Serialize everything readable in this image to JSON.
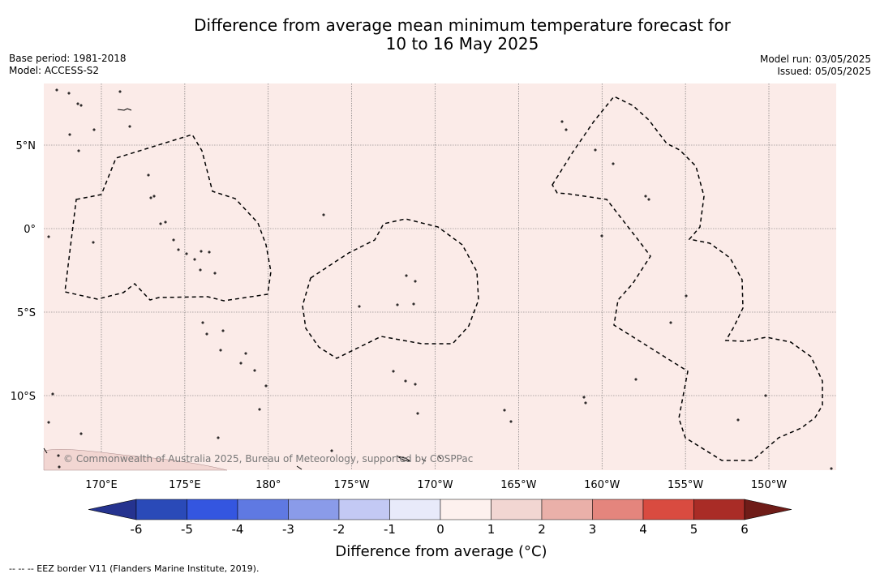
{
  "header": {
    "title_line1": "Difference from average mean minimum temperature forecast for",
    "title_line2": "10 to 16 May 2025",
    "base_period": "Base period: 1981-2018",
    "model": "Model: ACCESS-S2",
    "model_run": "Model run: 03/05/2025",
    "issued": "Issued: 05/05/2025"
  },
  "map": {
    "lat_labels": [
      "5°N",
      "0°",
      "5°S",
      "10°S"
    ],
    "lon_labels": [
      "170°E",
      "175°E",
      "180°",
      "175°W",
      "170°W",
      "165°W",
      "160°W",
      "155°W",
      "150°W"
    ],
    "lat_ticks": [
      5,
      0,
      -5,
      -10
    ],
    "lon_ticks": [
      170,
      175,
      180,
      185,
      190,
      195,
      200,
      205,
      210
    ],
    "background_anomaly_color": "#fbebe8",
    "grid": true,
    "copyright": "© Commonwealth of Australia 2025, Bureau of Meteorology, supported by COSPPac"
  },
  "colorbar": {
    "colors": [
      "#25338f",
      "#2a4ab8",
      "#3456e0",
      "#5f79e2",
      "#8a9be9",
      "#c3c9f4",
      "#e8eafa",
      "#fdf1ee",
      "#f2d6d2",
      "#eab0a9",
      "#e4857d",
      "#d94b40",
      "#a92c26",
      "#6f1c18"
    ],
    "tick_labels": [
      "-6",
      "-5",
      "-4",
      "-3",
      "-2",
      "-1",
      "0",
      "1",
      "2",
      "3",
      "4",
      "5",
      "6"
    ],
    "label": "Difference from average (°C)"
  },
  "footnote": "--  --  -- EEZ border V11 (Flanders Marine Institute, 2019)."
}
